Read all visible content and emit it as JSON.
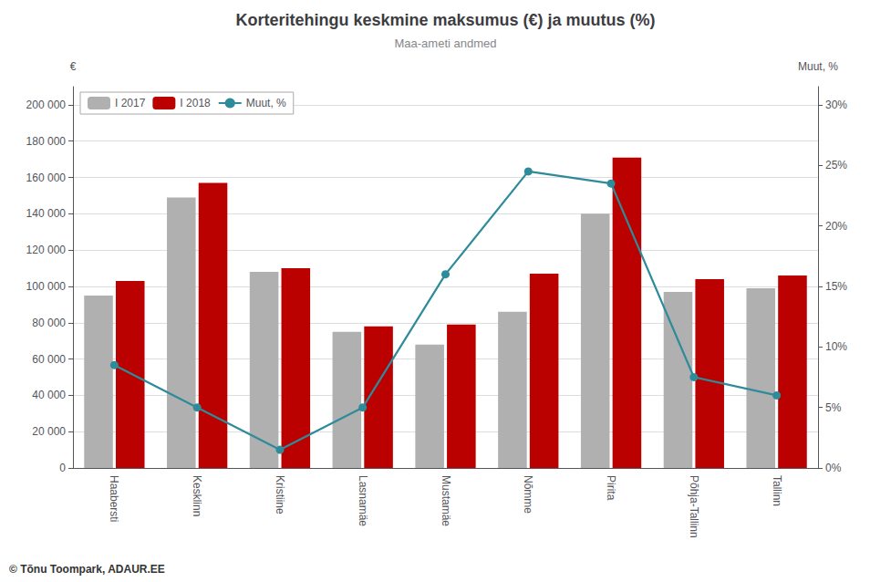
{
  "chart_data": {
    "type": "bar",
    "title": "Korteritehingu keskmine maksumus (€) ja muutus (%)",
    "subtitle": "Maa-ameti andmed",
    "ylabel": "€",
    "y2label": "Muut, %",
    "categories": [
      "Haabersti",
      "Kesklinn",
      "Kristiine",
      "Lasnamäe",
      "Mustamäe",
      "Nõmme",
      "Pirita",
      "Põhja-Tallinn",
      "Tallinn"
    ],
    "series": [
      {
        "name": "I 2017",
        "color": "#b0b0b0",
        "values": [
          95000,
          149000,
          108000,
          75000,
          68000,
          86000,
          140000,
          97000,
          99000
        ]
      },
      {
        "name": "I 2018",
        "color": "#bb0000",
        "values": [
          103000,
          157000,
          110000,
          78000,
          79000,
          107000,
          171000,
          104000,
          106000
        ]
      },
      {
        "name": "Muut, %",
        "type": "line",
        "axis": "y2",
        "color": "#2e8b9a",
        "marker": "circle",
        "values": [
          0.085,
          0.05,
          0.015,
          0.05,
          0.16,
          0.245,
          0.235,
          0.075,
          0.06
        ]
      }
    ],
    "ylim": [
      0,
      210000
    ],
    "yticks": [
      0,
      {
        "value": 20000,
        "label": "20 000"
      },
      {
        "value": 40000,
        "label": "40 000"
      },
      {
        "value": 60000,
        "label": "60 000"
      },
      {
        "value": 80000,
        "label": "80 000"
      },
      {
        "value": 100000,
        "label": "100 000"
      },
      {
        "value": 120000,
        "label": "120 000"
      },
      {
        "value": 140000,
        "label": "140 000"
      },
      {
        "value": 160000,
        "label": "160 000"
      },
      {
        "value": 180000,
        "label": "180 000"
      },
      {
        "value": 200000,
        "label": "200 000"
      }
    ],
    "y2lim": [
      0,
      0.315
    ],
    "y2ticks": [
      {
        "value": 0,
        "label": "0%"
      },
      {
        "value": 0.05,
        "label": "5%"
      },
      {
        "value": 0.1,
        "label": "10%"
      },
      {
        "value": 0.15,
        "label": "15%"
      },
      {
        "value": 0.2,
        "label": "20%"
      },
      {
        "value": 0.25,
        "label": "25%"
      },
      {
        "value": 0.3,
        "label": "30%"
      }
    ],
    "grid": true,
    "legend": "upper left",
    "annotations": [
      "© Tõnu Toompark, ADAUR.EE"
    ]
  }
}
